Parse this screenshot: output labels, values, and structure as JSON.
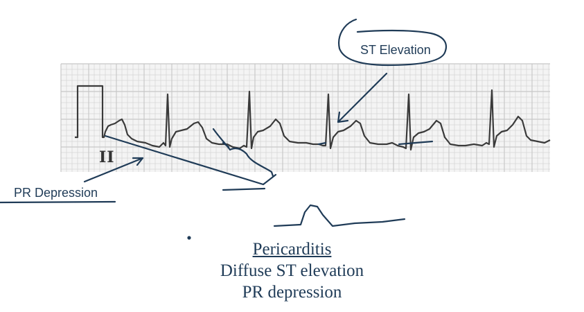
{
  "annotations": {
    "st_elevation": "ST Elevation",
    "pr_depression": "PR Depression"
  },
  "ecg": {
    "lead": "II"
  },
  "caption": {
    "title": "Pericarditis",
    "line1": "Diffuse ST elevation",
    "line2": "PR depression"
  },
  "colors": {
    "annotation_ink": "#1f3b57",
    "ecg_trace": "#333333",
    "grid_line": "#c8c8c8"
  }
}
